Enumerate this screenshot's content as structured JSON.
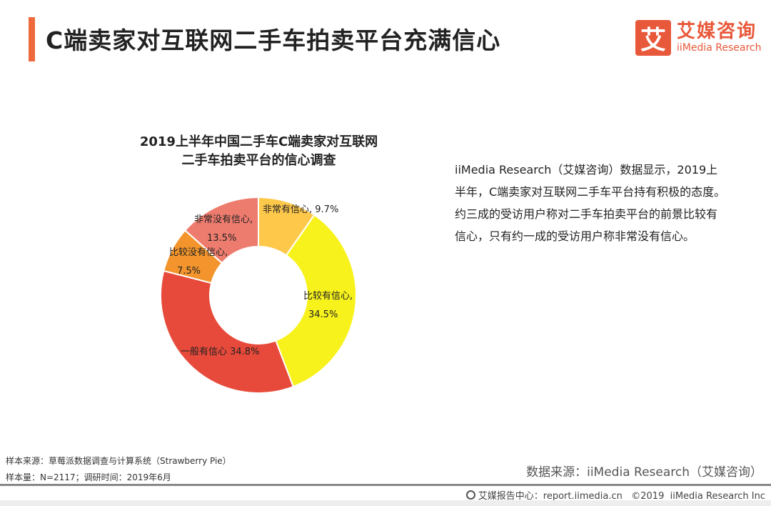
{
  "header": {
    "title": "C端卖家对互联网二手车拍卖平台充满信心"
  },
  "logo": {
    "mark": "艾",
    "cn": "艾媒咨询",
    "en": "iiMedia Research"
  },
  "chart_data": {
    "type": "pie",
    "variant": "donut",
    "title_lines": [
      "2019上半年中国二手车C端卖家对互联网",
      "二手车拍卖平台的信心调查"
    ],
    "categories": [
      "非常有信心",
      "比较有信心",
      "一般有信心",
      "比较没有信心",
      "非常没有信心"
    ],
    "values": [
      9.7,
      34.5,
      34.8,
      7.5,
      13.5
    ],
    "labels": [
      [
        "非常有信心, 9.7%"
      ],
      [
        "比较有信心,",
        "34.5%"
      ],
      [
        "一般有信心 34.8%"
      ],
      [
        "比较没有信心,",
        "7.5%"
      ],
      [
        "非常没有信心,",
        "13.5%"
      ]
    ],
    "colors": [
      "#fec84a",
      "#f8f21c",
      "#e74a3a",
      "#f3952c",
      "#ee7c6e"
    ],
    "unit": "%"
  },
  "description": "iiMedia Research（艾媒咨询）数据显示，2019上半年，C端卖家对互联网二手车平台持有积极的态度。约三成的受访用户称对二手车拍卖平台的前景比较有信心，只有约一成的受访用户称非常没有信心。",
  "sources": {
    "sample_source": "样本来源：草莓派数据调查与计算系统（Strawberry Pie）",
    "sample_size": "样本量：N=2117；调研时间：2019年6月",
    "data_source": "数据来源：iiMedia Research（艾媒咨询）"
  },
  "footer": {
    "text": "艾媒报告中心：report.iimedia.cn   ©2019  iiMedia Research Inc"
  }
}
